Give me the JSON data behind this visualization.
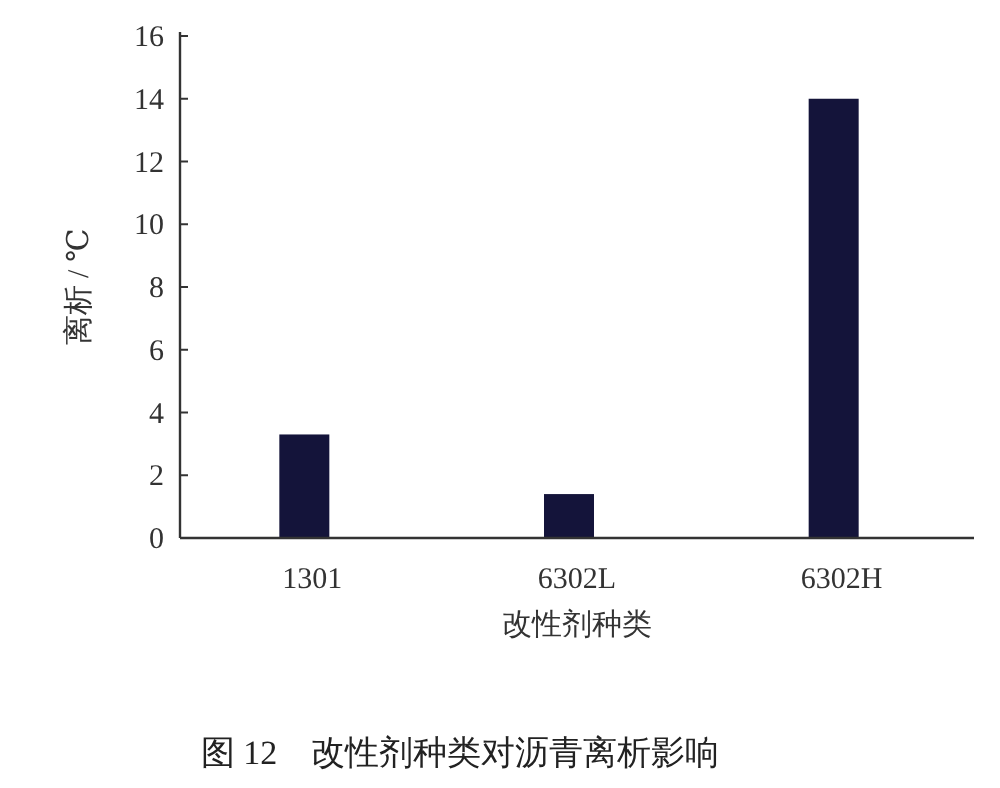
{
  "chart_data": {
    "type": "bar",
    "title": "图 12　改性剂种类对沥青离析影响",
    "xlabel": "改性剂种类",
    "ylabel": "离析 / ℃",
    "categories": [
      "1301",
      "6302L",
      "6302H"
    ],
    "values": [
      3.3,
      1.4,
      14.0
    ],
    "color": "#14143a",
    "ylim": [
      0,
      16
    ],
    "yticks": [
      0,
      2,
      4,
      6,
      8,
      10,
      12,
      14,
      16
    ],
    "grid": false
  }
}
